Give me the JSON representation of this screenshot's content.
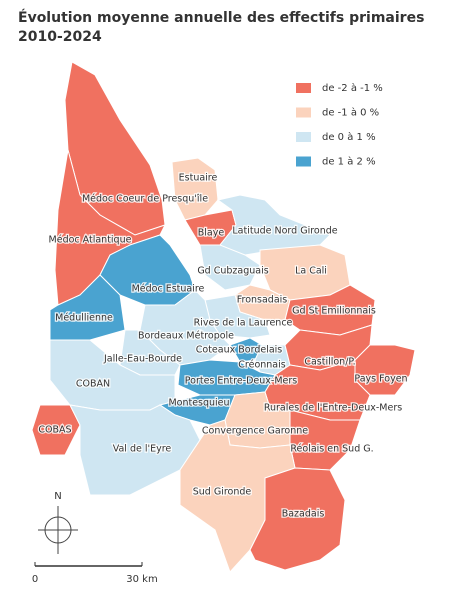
{
  "title": [
    "Évolution moyenne annuelle des effectifs primaires",
    "2010-2024"
  ],
  "legend": [
    {
      "label": "de -2 à -1 %",
      "color": "#f07160"
    },
    {
      "label": "de -1 à 0 %",
      "color": "#fbd3bd"
    },
    {
      "label": "de 0 à 1 %",
      "color": "#cfe6f2"
    },
    {
      "label": "de 1 à 2 %",
      "color": "#4aa3d0"
    }
  ],
  "regions": [
    {
      "name": "Médoc Coeur de Presqu'île",
      "color": "#f07160"
    },
    {
      "name": "Médoc Atlantique",
      "color": "#f07160"
    },
    {
      "name": "Estuaire",
      "color": "#fbd3bd"
    },
    {
      "name": "Blaye",
      "color": "#f07160"
    },
    {
      "name": "Latitude Nord Gironde",
      "color": "#cfe6f2"
    },
    {
      "name": "Gd Cubzaguais",
      "color": "#cfe6f2"
    },
    {
      "name": "La Cali",
      "color": "#fbd3bd"
    },
    {
      "name": "Médoc Estuaire",
      "color": "#4aa3d0"
    },
    {
      "name": "Fronsadais",
      "color": "#fbd3bd"
    },
    {
      "name": "Médullienne",
      "color": "#4aa3d0"
    },
    {
      "name": "Gd St Emilionnais",
      "color": "#f07160"
    },
    {
      "name": "Rives de la Laurence",
      "color": "#cfe6f2"
    },
    {
      "name": "Bordeaux Métropole",
      "color": "#cfe6f2"
    },
    {
      "name": "Coteaux Bordelais",
      "color": "#4aa3d0"
    },
    {
      "name": "Jalle-Eau-Bourde",
      "color": "#cfe6f2"
    },
    {
      "name": "Créonnais",
      "color": "#cfe6f2"
    },
    {
      "name": "Castillon/P.",
      "color": "#f07160"
    },
    {
      "name": "COBAN",
      "color": "#cfe6f2"
    },
    {
      "name": "Portes Entre-Deux-Mers",
      "color": "#4aa3d0"
    },
    {
      "name": "Pays Foyen",
      "color": "#f07160"
    },
    {
      "name": "Montesquieu",
      "color": "#4aa3d0"
    },
    {
      "name": "Rurales de l'Entre-Deux-Mers",
      "color": "#f07160"
    },
    {
      "name": "COBAS",
      "color": "#f07160"
    },
    {
      "name": "Convergence Garonne",
      "color": "#fbd3bd"
    },
    {
      "name": "Réolais en Sud G.",
      "color": "#f07160"
    },
    {
      "name": "Val de l'Eyre",
      "color": "#cfe6f2"
    },
    {
      "name": "Sud Gironde",
      "color": "#fbd3bd"
    },
    {
      "name": "Bazadais",
      "color": "#f07160"
    }
  ],
  "north": "N",
  "scale": {
    "start": "0",
    "end": "30 km"
  }
}
